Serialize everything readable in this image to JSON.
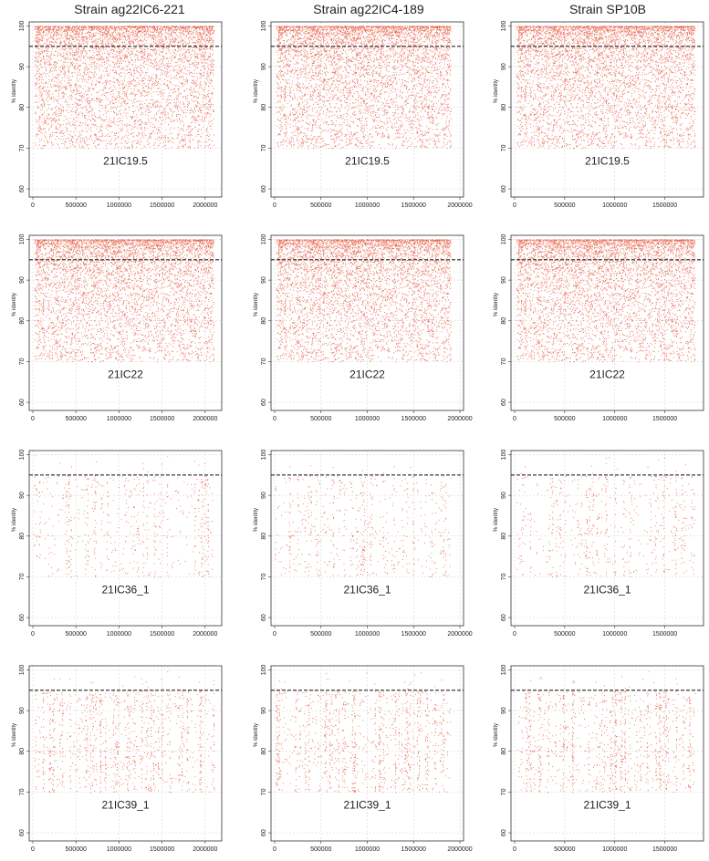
{
  "columns": [
    {
      "title": "Strain ag22IC6-221",
      "xmax": 2150000,
      "xticks": [
        0,
        500000,
        1000000,
        1500000,
        2000000
      ],
      "dataEnd": 2100000
    },
    {
      "title": "Strain ag22IC4-189",
      "xmax": 2000000,
      "xticks": [
        0,
        500000,
        1000000,
        1500000,
        2000000
      ],
      "dataEnd": 1900000
    },
    {
      "title": "Strain SP10B",
      "xmax": 1850000,
      "xticks": [
        0,
        500000,
        1000000,
        1500000
      ],
      "dataEnd": 1800000
    }
  ],
  "rows": [
    {
      "sample": "21IC19.5",
      "density": "high"
    },
    {
      "sample": "21IC22",
      "density": "high"
    },
    {
      "sample": "21IC36_1",
      "density": "low"
    },
    {
      "sample": "21IC39_1",
      "density": "medium"
    }
  ],
  "chart_data": {
    "type": "scatter",
    "ylabel": "% identity",
    "ylim": [
      58,
      101
    ],
    "yticks": [
      60,
      70,
      80,
      90,
      100
    ],
    "threshold": 95,
    "point_color": "#e8674f",
    "grid": true
  }
}
